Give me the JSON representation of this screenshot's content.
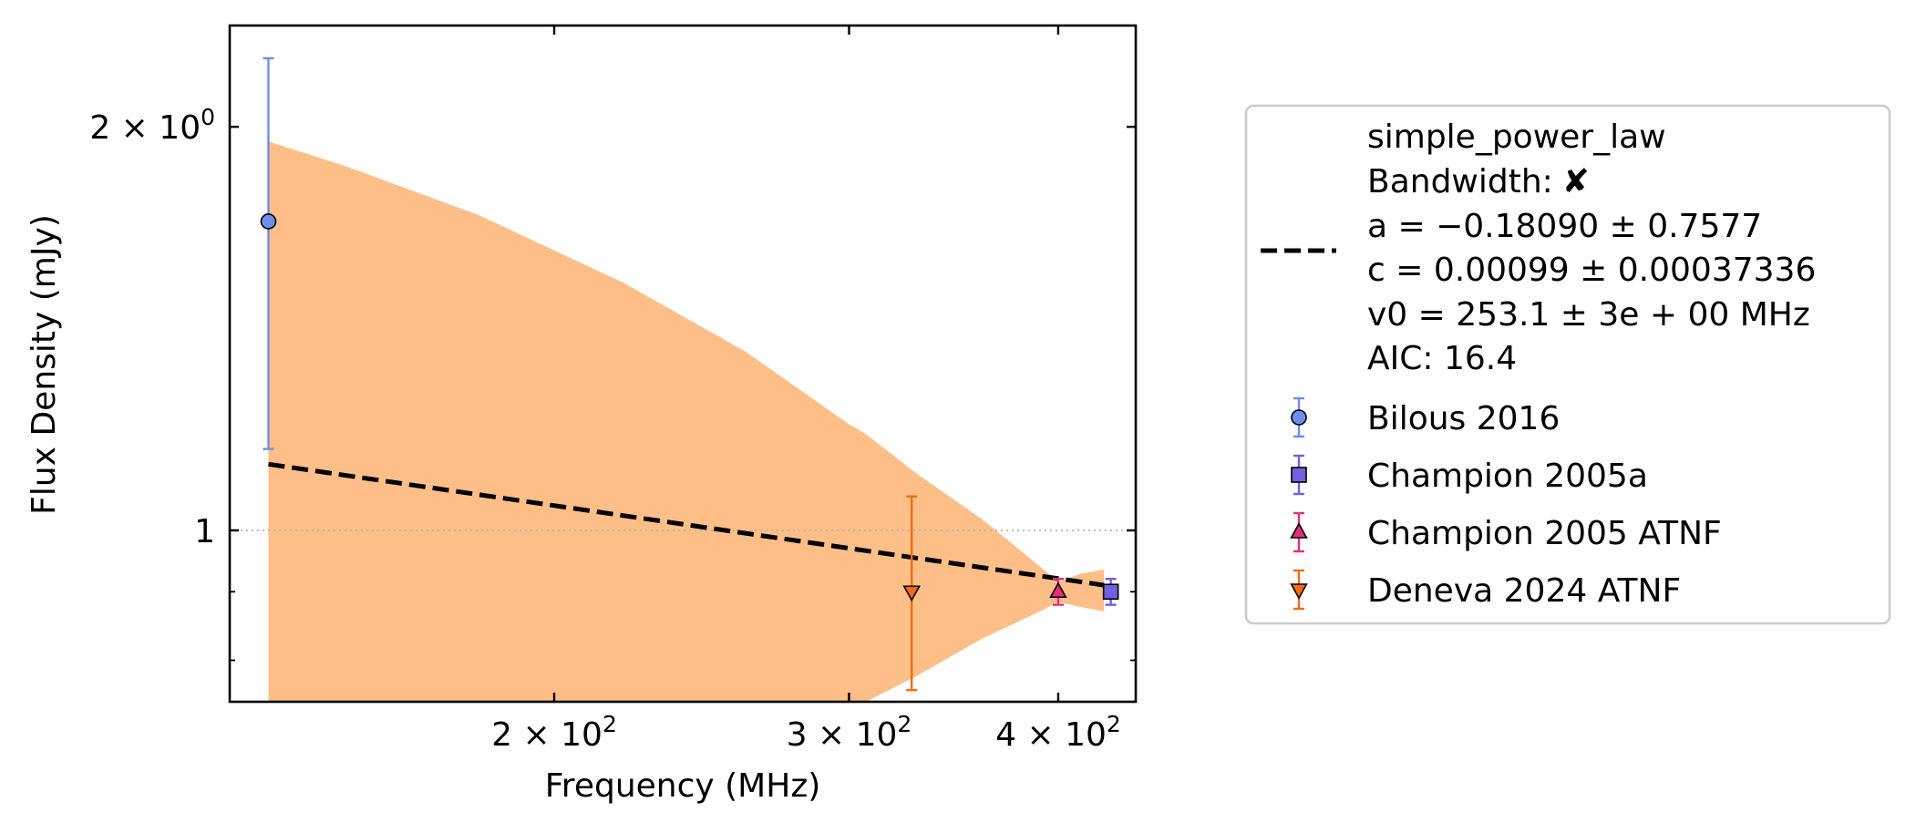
{
  "chart_data": {
    "type": "scatter",
    "title": "",
    "xlabel": "Frequency (MHz)",
    "ylabel": "Flux Density (mJy)",
    "xscale": "log",
    "yscale": "log",
    "xlim": [
      128,
      445
    ],
    "ylim": [
      0.745,
      2.38
    ],
    "x_ticks": [
      {
        "value": 200,
        "base": "2 × 10",
        "exp": "2"
      },
      {
        "value": 300,
        "base": "3 × 10",
        "exp": "2"
      },
      {
        "value": 400,
        "base": "4 × 10",
        "exp": "2"
      }
    ],
    "y_ticks": [
      {
        "value": 1,
        "base": "1",
        "exp": ""
      },
      {
        "value": 2,
        "base": "2 × 10",
        "exp": "0"
      }
    ],
    "y_minor_ticks": [
      0.8,
      0.9
    ],
    "reference_line": {
      "y": 1
    },
    "grid": false,
    "legend_position": "right, outside",
    "fit": {
      "name": "simple_power_law",
      "bandwidth_label": "Bandwidth:",
      "bandwidth_mark": "✘",
      "lines": [
        "a = −0.18090 ± 0.7577",
        "c = 0.00099 ± 0.00037336",
        "v0 = 253.1 ± 3e + 00 MHz",
        "AIC: 16.4"
      ],
      "a": -0.1809,
      "c": 1.0,
      "v0": 253.1,
      "x_range": [
        135,
        426
      ],
      "color": "#000000",
      "band_color": "#fdbf87",
      "band": [
        {
          "x": 135,
          "lo": 0.745,
          "hi": 1.95
        },
        {
          "x": 150,
          "lo": 0.745,
          "hi": 1.87
        },
        {
          "x": 180,
          "lo": 0.745,
          "hi": 1.72
        },
        {
          "x": 220,
          "lo": 0.745,
          "hi": 1.53
        },
        {
          "x": 260,
          "lo": 0.745,
          "hi": 1.36
        },
        {
          "x": 300,
          "lo": 0.745,
          "hi": 1.2
        },
        {
          "x": 307,
          "lo": 0.745,
          "hi": 1.18
        },
        {
          "x": 330,
          "lo": 0.78,
          "hi": 1.1
        },
        {
          "x": 360,
          "lo": 0.83,
          "hi": 1.02
        },
        {
          "x": 390,
          "lo": 0.87,
          "hi": 0.94
        },
        {
          "x": 400,
          "lo": 0.884,
          "hi": 0.915
        },
        {
          "x": 412,
          "lo": 0.877,
          "hi": 0.928
        },
        {
          "x": 426,
          "lo": 0.87,
          "hi": 0.935
        }
      ]
    },
    "series": [
      {
        "name": "Bilous 2016",
        "marker": "circle",
        "color": "#6d8fec",
        "points": [
          {
            "x": 135,
            "y": 1.7,
            "ylo": 1.15,
            "yhi": 2.25
          }
        ]
      },
      {
        "name": "Champion 2005a",
        "marker": "square",
        "color": "#7260e0",
        "points": [
          {
            "x": 430,
            "y": 0.9,
            "ylo": 0.88,
            "yhi": 0.92
          }
        ]
      },
      {
        "name": "Champion 2005 ATNF",
        "marker": "triangle-up",
        "color": "#e0317a",
        "points": [
          {
            "x": 400,
            "y": 0.9,
            "ylo": 0.88,
            "yhi": 0.92
          }
        ]
      },
      {
        "name": "Deneva 2024 ATNF",
        "marker": "triangle-down",
        "color": "#f76a12",
        "points": [
          {
            "x": 327,
            "y": 0.9,
            "ylo": 0.76,
            "yhi": 1.06
          }
        ]
      }
    ]
  }
}
